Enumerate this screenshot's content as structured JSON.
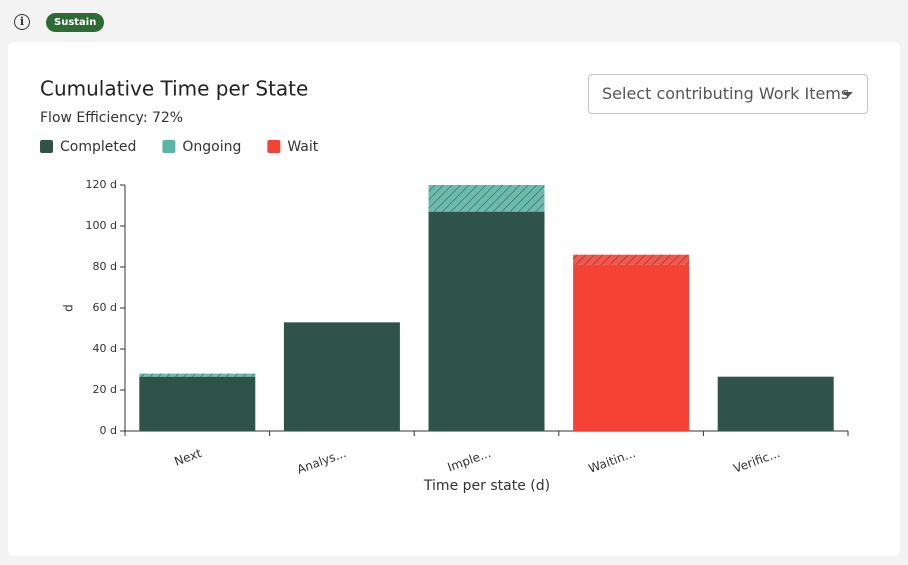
{
  "header": {
    "badge": "Sustain"
  },
  "dropdown_placeholder": "Select contributing Work Items",
  "chart_data": {
    "type": "stacked_bar",
    "title": "Cumulative Time per State",
    "subtitle": "Flow Efficiency: 72%",
    "legend": [
      {
        "name": "Completed",
        "color": "#2f5349"
      },
      {
        "name": "Ongoing",
        "color": "#5bb5a6"
      },
      {
        "name": "Wait",
        "color": "#f44336"
      }
    ],
    "categories": [
      "Next",
      "Analys...",
      "Imple...",
      "Waitin...",
      "Verific..."
    ],
    "series": [
      {
        "name": "Completed",
        "color": "#2f5349",
        "hatched": false,
        "bar_colors": [
          "#2f5349",
          "#2f5349",
          "#2f5349",
          "#f44336",
          "#2f5349"
        ],
        "values": [
          26.5,
          53,
          107,
          81,
          26.5
        ]
      },
      {
        "name": "Ongoing",
        "color": "#5bb5a6",
        "hatched": true,
        "bar_colors": [
          "#5bb5a6",
          "#5bb5a6",
          "#5bb5a6",
          "#f44336",
          "#5bb5a6"
        ],
        "values": [
          1.5,
          0,
          13,
          5,
          0
        ]
      }
    ],
    "ylabel": "d",
    "xlabel": "Time per state (d)",
    "ylim": [
      0,
      120
    ],
    "yticks": [
      {
        "value": 0,
        "label": "0 d"
      },
      {
        "value": 20,
        "label": "20 d"
      },
      {
        "value": 40,
        "label": "40 d"
      },
      {
        "value": 60,
        "label": "60 d"
      },
      {
        "value": 80,
        "label": "80 d"
      },
      {
        "value": 100,
        "label": "100 d"
      },
      {
        "value": 120,
        "label": "120 d"
      }
    ]
  }
}
